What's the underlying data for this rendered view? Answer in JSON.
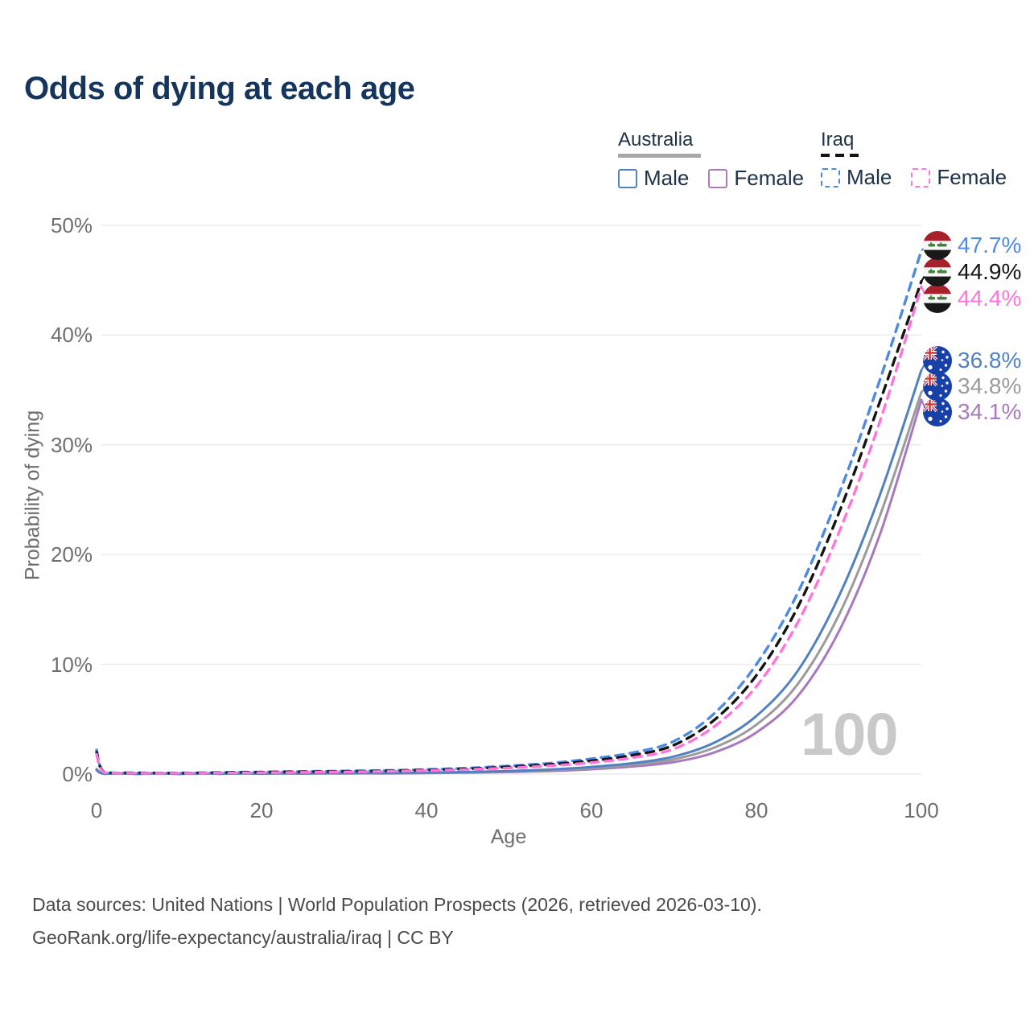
{
  "header": {
    "title": "Odds of dying at each age"
  },
  "legend": {
    "groups": [
      {
        "name": "Australia",
        "underline_color": "#a8a8a8",
        "underline_style": "solid",
        "items": [
          {
            "label": "Male",
            "color": "#5181c2",
            "dashed": false
          },
          {
            "label": "Female",
            "color": "#b07ab8",
            "dashed": false
          }
        ]
      },
      {
        "name": "Iraq",
        "underline_color": "#141414",
        "underline_style": "dashed",
        "items": [
          {
            "label": "Male",
            "color": "#4d8ae5",
            "dashed": true
          },
          {
            "label": "Female",
            "color": "#ff74da",
            "dashed": true
          }
        ]
      }
    ]
  },
  "chart_data": {
    "type": "line",
    "title": "Odds of dying at each age",
    "xlabel": "Age",
    "ylabel": "Probability of dying",
    "x_ticks": [
      "0",
      "20",
      "40",
      "60",
      "80",
      "100"
    ],
    "y_ticks": [
      "0%",
      "10%",
      "20%",
      "30%",
      "40%",
      "50%"
    ],
    "xlim": [
      0,
      100
    ],
    "ylim": [
      0,
      50
    ],
    "grid": "horizontal",
    "legend_position": "top-right",
    "watermark": "100",
    "ages": [
      0,
      1,
      5,
      10,
      15,
      20,
      25,
      30,
      35,
      40,
      45,
      50,
      55,
      60,
      65,
      70,
      75,
      80,
      85,
      90,
      95,
      100
    ],
    "series": [
      {
        "id": "iraq-male",
        "country": "Iraq",
        "sex": "Male",
        "style": "dashed",
        "color": "#4d8ae5",
        "end_label": "47.7%",
        "end_value": 47.7,
        "values": [
          2.2,
          0.15,
          0.12,
          0.1,
          0.15,
          0.2,
          0.24,
          0.28,
          0.33,
          0.42,
          0.55,
          0.75,
          1.0,
          1.4,
          1.95,
          3.0,
          5.6,
          10.0,
          16.5,
          25.5,
          36.0,
          47.7
        ]
      },
      {
        "id": "iraq-persons",
        "country": "Iraq",
        "sex": "Persons",
        "style": "dashed",
        "color": "#141414",
        "end_label": "44.9%",
        "end_value": 44.9,
        "values": [
          2.0,
          0.13,
          0.1,
          0.09,
          0.13,
          0.17,
          0.2,
          0.24,
          0.29,
          0.37,
          0.48,
          0.65,
          0.88,
          1.22,
          1.72,
          2.65,
          5.0,
          9.0,
          15.2,
          23.8,
          34.0,
          44.9
        ]
      },
      {
        "id": "iraq-female",
        "country": "Iraq",
        "sex": "Female",
        "style": "dashed",
        "color": "#ff74da",
        "end_label": "44.4%",
        "end_value": 44.4,
        "values": [
          1.8,
          0.12,
          0.09,
          0.08,
          0.1,
          0.13,
          0.16,
          0.2,
          0.25,
          0.32,
          0.42,
          0.56,
          0.76,
          1.05,
          1.5,
          2.3,
          4.4,
          8.0,
          13.8,
          22.0,
          32.2,
          44.4
        ]
      },
      {
        "id": "australia-male",
        "country": "Australia",
        "sex": "Male",
        "style": "solid",
        "color": "#5181c2",
        "end_label": "36.8%",
        "end_value": 36.8,
        "values": [
          0.45,
          0.03,
          0.02,
          0.02,
          0.04,
          0.06,
          0.07,
          0.08,
          0.1,
          0.14,
          0.19,
          0.28,
          0.42,
          0.65,
          1.0,
          1.6,
          2.9,
          5.3,
          9.4,
          16.2,
          25.5,
          36.8
        ]
      },
      {
        "id": "australia-persons",
        "country": "Australia",
        "sex": "Persons",
        "style": "solid",
        "color": "#9b9b9b",
        "end_label": "34.8%",
        "end_value": 34.8,
        "values": [
          0.4,
          0.03,
          0.02,
          0.02,
          0.03,
          0.05,
          0.06,
          0.07,
          0.08,
          0.11,
          0.16,
          0.23,
          0.35,
          0.54,
          0.85,
          1.35,
          2.45,
          4.5,
          8.2,
          14.5,
          23.6,
          34.8
        ]
      },
      {
        "id": "australia-female",
        "country": "Australia",
        "sex": "Female",
        "style": "solid",
        "color": "#a978bf",
        "end_label": "34.1%",
        "end_value": 34.1,
        "values": [
          0.35,
          0.02,
          0.01,
          0.01,
          0.02,
          0.03,
          0.04,
          0.05,
          0.06,
          0.09,
          0.13,
          0.19,
          0.28,
          0.44,
          0.7,
          1.1,
          2.0,
          3.8,
          7.1,
          13.0,
          21.9,
          34.1
        ]
      }
    ]
  },
  "footer": {
    "line1": "Data sources: United Nations | World Population Prospects (2026, retrieved 2026-03-10).",
    "line2": "GeoRank.org/life-expectancy/australia/iraq | CC BY"
  }
}
